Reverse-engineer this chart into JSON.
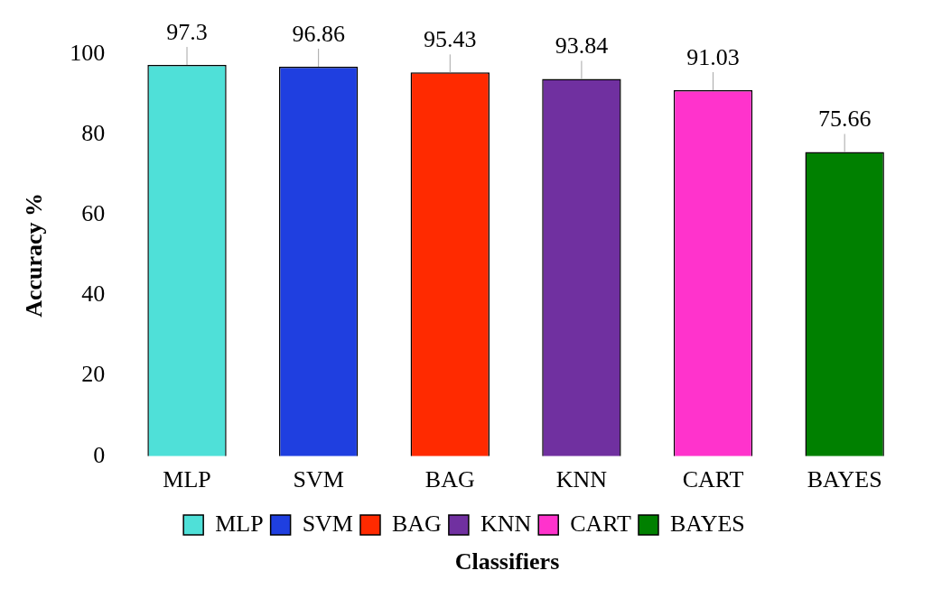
{
  "chart_data": {
    "type": "bar",
    "categories": [
      "MLP",
      "SVM",
      "BAG",
      "KNN",
      "CART",
      "BAYES"
    ],
    "series": [
      {
        "name": "MLP",
        "color": "#4fe0d8",
        "values": [
          97.3,
          null,
          null,
          null,
          null,
          null
        ]
      },
      {
        "name": "SVM",
        "color": "#1f3fe0",
        "values": [
          null,
          96.86,
          null,
          null,
          null,
          null
        ]
      },
      {
        "name": "BAG",
        "color": "#ff2a00",
        "values": [
          null,
          null,
          95.43,
          null,
          null,
          null
        ]
      },
      {
        "name": "KNN",
        "color": "#7030a0",
        "values": [
          null,
          null,
          null,
          93.84,
          null,
          null
        ]
      },
      {
        "name": "CART",
        "color": "#ff33cc",
        "values": [
          null,
          null,
          null,
          null,
          91.03,
          null
        ]
      },
      {
        "name": "BAYES",
        "color": "#008000",
        "values": [
          null,
          null,
          null,
          null,
          null,
          75.66
        ]
      }
    ],
    "xlabel": "Classifiers",
    "ylabel": "Accuracy %",
    "ylim": [
      0,
      100
    ],
    "yticks": [
      0,
      20,
      40,
      60,
      80,
      100
    ],
    "data_labels": true,
    "grid": false,
    "legend": "bottom"
  }
}
